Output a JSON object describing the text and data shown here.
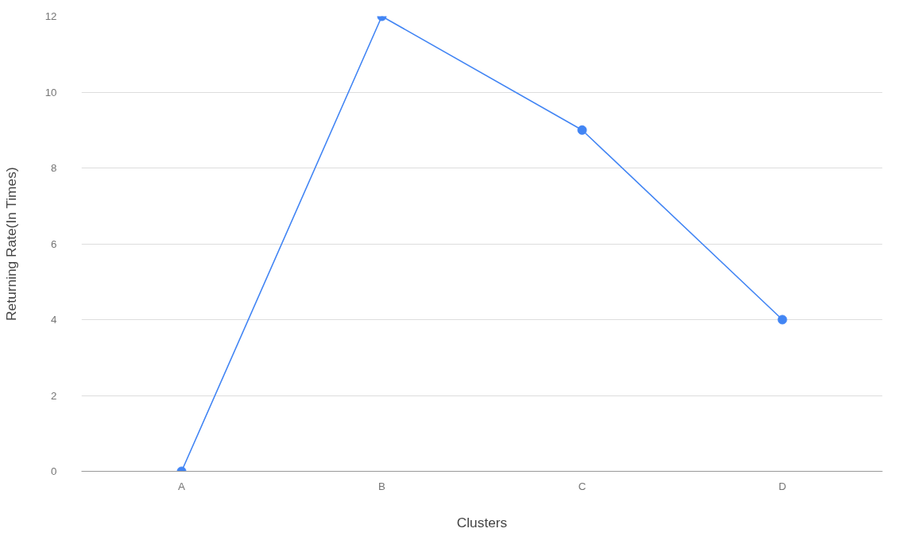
{
  "chart_data": {
    "type": "line",
    "xlabel": "Clusters",
    "ylabel": "Returning Rate(In Times)",
    "categories": [
      "A",
      "B",
      "C",
      "D"
    ],
    "series": [
      {
        "color": "#4285f4",
        "values": [
          0,
          12,
          9,
          4
        ]
      }
    ],
    "ylim": [
      0,
      12
    ],
    "yticks": [
      0,
      2,
      4,
      6,
      8,
      10,
      12
    ],
    "grid": "y",
    "marker": "circle",
    "line_style": "solid"
  }
}
